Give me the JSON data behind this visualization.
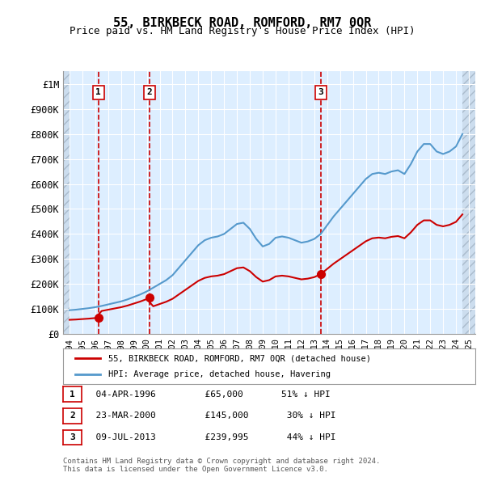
{
  "title": "55, BIRKBECK ROAD, ROMFORD, RM7 0QR",
  "subtitle": "Price paid vs. HM Land Registry's House Price Index (HPI)",
  "red_label": "55, BIRKBECK ROAD, ROMFORD, RM7 0QR (detached house)",
  "blue_label": "HPI: Average price, detached house, Havering",
  "footer1": "Contains HM Land Registry data © Crown copyright and database right 2024.",
  "footer2": "This data is licensed under the Open Government Licence v3.0.",
  "transactions": [
    {
      "num": 1,
      "date": "04-APR-1996",
      "x_year": 1996.25,
      "price": 65000,
      "pct": "51%",
      "dir": "↓"
    },
    {
      "num": 2,
      "date": "23-MAR-2000",
      "x_year": 2000.22,
      "price": 145000,
      "pct": "30%",
      "dir": "↓"
    },
    {
      "num": 3,
      "date": "09-JUL-2013",
      "x_year": 2013.52,
      "price": 239995,
      "pct": "44%",
      "dir": "↓"
    }
  ],
  "hpi_x": [
    1994,
    1994.5,
    1995,
    1995.5,
    1996,
    1996.5,
    1997,
    1997.5,
    1998,
    1998.5,
    1999,
    1999.5,
    2000,
    2000.5,
    2001,
    2001.5,
    2002,
    2002.5,
    2003,
    2003.5,
    2004,
    2004.5,
    2005,
    2005.5,
    2006,
    2006.5,
    2007,
    2007.5,
    2008,
    2008.5,
    2009,
    2009.5,
    2010,
    2010.5,
    2011,
    2011.5,
    2012,
    2012.5,
    2013,
    2013.5,
    2014,
    2014.5,
    2015,
    2015.5,
    2016,
    2016.5,
    2017,
    2017.5,
    2018,
    2018.5,
    2019,
    2019.5,
    2020,
    2020.5,
    2021,
    2021.5,
    2022,
    2022.5,
    2023,
    2023.5,
    2024,
    2024.5
  ],
  "hpi_y": [
    95000,
    97000,
    100000,
    103000,
    107000,
    112000,
    118000,
    124000,
    130000,
    138000,
    148000,
    158000,
    170000,
    185000,
    200000,
    215000,
    235000,
    265000,
    295000,
    325000,
    355000,
    375000,
    385000,
    390000,
    400000,
    420000,
    440000,
    445000,
    420000,
    380000,
    350000,
    360000,
    385000,
    390000,
    385000,
    375000,
    365000,
    370000,
    380000,
    400000,
    435000,
    470000,
    500000,
    530000,
    560000,
    590000,
    620000,
    640000,
    645000,
    640000,
    650000,
    655000,
    640000,
    680000,
    730000,
    760000,
    760000,
    730000,
    720000,
    730000,
    750000,
    800000
  ],
  "red_line_x": [
    1994,
    1994.5,
    1995,
    1995.5,
    1996,
    1996.5,
    1997,
    1997.5,
    1998,
    1998.5,
    1999,
    1999.5,
    2000,
    2000.5,
    2001,
    2001.5,
    2002,
    2002.5,
    2003,
    2003.5,
    2004,
    2004.5,
    2005,
    2005.5,
    2006,
    2006.5,
    2007,
    2007.5,
    2008,
    2008.5,
    2009,
    2009.5,
    2010,
    2010.5,
    2011,
    2011.5,
    2012,
    2012.5,
    2013,
    2013.5,
    2014,
    2014.5,
    2015,
    2015.5,
    2016,
    2016.5,
    2017,
    2017.5,
    2018,
    2018.5,
    2019,
    2019.5,
    2020,
    2020.5,
    2021,
    2021.5,
    2022,
    2022.5,
    2023,
    2023.5,
    2024,
    2024.5
  ],
  "ylim": [
    0,
    1050000
  ],
  "yticks": [
    0,
    100000,
    200000,
    300000,
    400000,
    500000,
    600000,
    700000,
    800000,
    900000,
    1000000
  ],
  "ytick_labels": [
    "£0",
    "£100K",
    "£200K",
    "£300K",
    "£400K",
    "£500K",
    "£600K",
    "£700K",
    "£800K",
    "£900K",
    "£1M"
  ],
  "xlim": [
    1993.5,
    2025.5
  ],
  "xticks": [
    1994,
    1995,
    1996,
    1997,
    1998,
    1999,
    2000,
    2001,
    2002,
    2003,
    2004,
    2005,
    2006,
    2007,
    2008,
    2009,
    2010,
    2011,
    2012,
    2013,
    2014,
    2015,
    2016,
    2017,
    2018,
    2019,
    2020,
    2021,
    2022,
    2023,
    2024,
    2025
  ],
  "background_color": "#ffffff",
  "plot_bg_color": "#ddeeff",
  "hatch_color": "#bbccdd",
  "grid_color": "#ffffff",
  "red_color": "#cc0000",
  "blue_color": "#5599cc"
}
